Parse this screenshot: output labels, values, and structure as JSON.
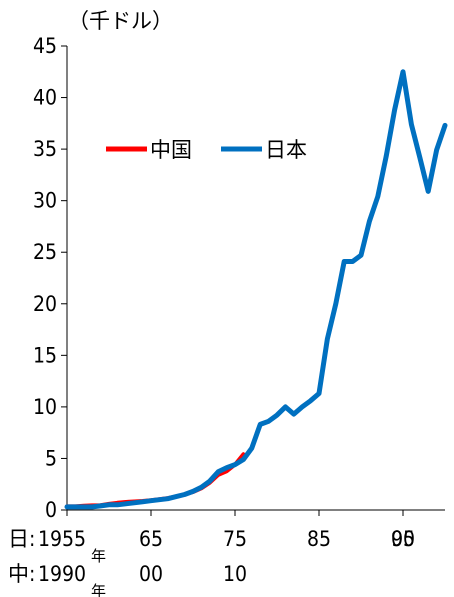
{
  "chart_data": {
    "type": "line",
    "unit_label": "（千ドル）",
    "ylim": [
      0,
      45
    ],
    "yticks": [
      0,
      5,
      10,
      15,
      20,
      25,
      30,
      35,
      40,
      45
    ],
    "x_axis": {
      "japan_row_prefix": "日:",
      "china_row_prefix": "中:",
      "japan_ticks": [
        "1955",
        "65",
        "75",
        "85",
        "95",
        "00"
      ],
      "china_ticks": [
        "1990",
        "00",
        "10"
      ],
      "year_suffix": "年"
    },
    "legend": {
      "placement": "upper-left",
      "entries": [
        "中国",
        "日本"
      ]
    },
    "grid": false,
    "series": [
      {
        "name": "日本",
        "color": "#0070C0",
        "x_unit": "year (Japan axis)",
        "x": [
          1955,
          1956,
          1957,
          1958,
          1959,
          1960,
          1961,
          1962,
          1963,
          1964,
          1965,
          1966,
          1967,
          1968,
          1969,
          1970,
          1971,
          1972,
          1973,
          1974,
          1975,
          1976,
          1977,
          1978,
          1979,
          1980,
          1981,
          1982,
          1983,
          1984,
          1985,
          1986,
          1987,
          1988,
          1989,
          1990,
          1991,
          1992,
          1993,
          1994,
          1995,
          1996,
          1997,
          1998,
          1999,
          2000
        ],
        "y": [
          0.3,
          0.3,
          0.3,
          0.3,
          0.4,
          0.5,
          0.5,
          0.6,
          0.7,
          0.8,
          0.9,
          1.0,
          1.1,
          1.3,
          1.5,
          1.8,
          2.2,
          2.8,
          3.7,
          4.1,
          4.4,
          4.9,
          6.0,
          8.3,
          8.6,
          9.2,
          10.0,
          9.3,
          10.0,
          10.6,
          11.3,
          16.6,
          20.0,
          24.1,
          24.1,
          24.7,
          28.0,
          30.4,
          34.3,
          38.8,
          42.5,
          37.4,
          34.2,
          30.9,
          34.9,
          37.3
        ]
      },
      {
        "name": "中国",
        "color": "#FF0000",
        "x_unit": "year (China axis)",
        "x": [
          1990,
          1991,
          1992,
          1993,
          1994,
          1995,
          1996,
          1997,
          1998,
          1999,
          2000,
          2001,
          2002,
          2003,
          2004,
          2005,
          2006,
          2007,
          2008,
          2009,
          2010,
          2011
        ],
        "y": [
          0.35,
          0.35,
          0.42,
          0.45,
          0.47,
          0.6,
          0.7,
          0.78,
          0.82,
          0.87,
          0.95,
          1.05,
          1.15,
          1.3,
          1.5,
          1.75,
          2.1,
          2.65,
          3.4,
          3.75,
          4.4,
          5.4
        ]
      }
    ]
  }
}
